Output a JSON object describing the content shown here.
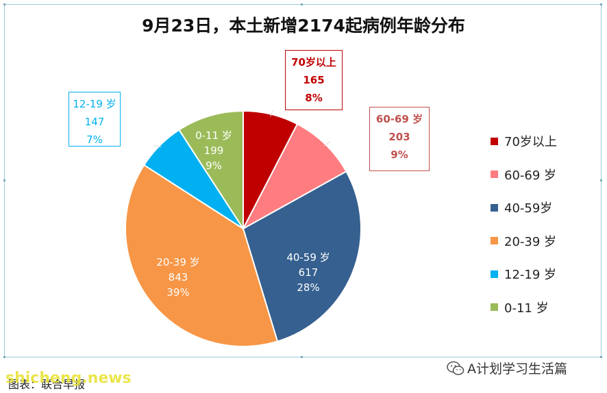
{
  "chart_data": {
    "type": "pie",
    "title": "9月23日，本土新增2174起病例年龄分布",
    "slices": [
      {
        "label": "70岁以上",
        "callout_name": "70岁以上",
        "value": 165,
        "percent": "8%",
        "color": "#c00000"
      },
      {
        "label": "60-69 岁",
        "callout_name": "60-69 岁",
        "value": 203,
        "percent": "9%",
        "color": "#ff7c80"
      },
      {
        "label": "40-59岁",
        "callout_name": "40-59 岁",
        "value": 617,
        "percent": "28%",
        "color": "#35608f"
      },
      {
        "label": "20-39 岁",
        "callout_name": "20-39 岁",
        "value": 843,
        "percent": "39%",
        "color": "#f79646"
      },
      {
        "label": "12-19 岁",
        "callout_name": "12-19 岁",
        "value": 147,
        "percent": "7%",
        "color": "#00b0f0"
      },
      {
        "label": "0-11 岁",
        "callout_name": "0-11 岁",
        "value": 199,
        "percent": "9%",
        "color": "#9bbb59"
      }
    ],
    "legend_position": "right"
  },
  "footer": {
    "source": "图表：联合早报",
    "watermark": "shicheng.news",
    "wechat": "A计划学习生活篇"
  }
}
